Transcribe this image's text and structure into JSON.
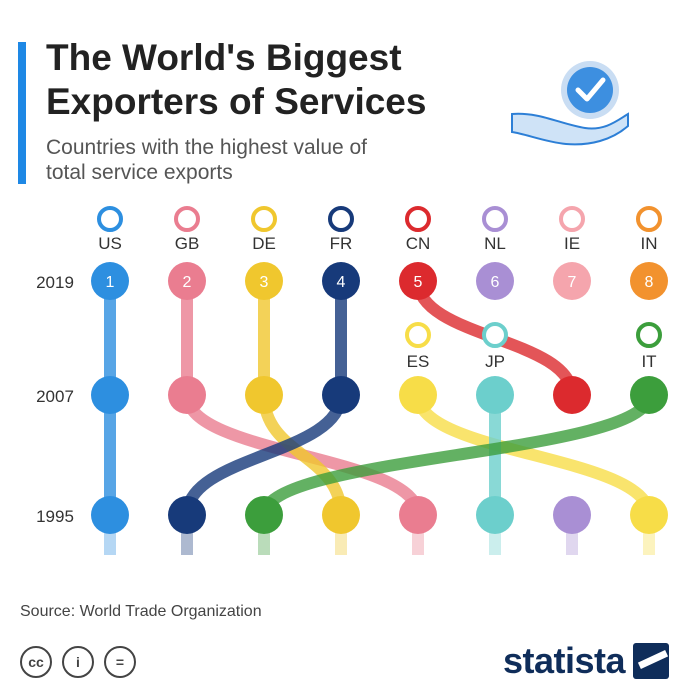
{
  "header": {
    "title": "The World's Biggest Exporters of Services",
    "subtitle": "Countries with the highest value of total service exports"
  },
  "footer": {
    "source": "Source: World Trade Organization",
    "brand": "statista",
    "license_icons": [
      "cc-icon",
      "attribution-icon",
      "no-derivatives-icon"
    ]
  },
  "chart_data": {
    "type": "bump",
    "years": [
      "2019",
      "2007",
      "1995"
    ],
    "ranks": [
      1,
      2,
      3,
      4,
      5,
      6,
      7,
      8
    ],
    "grid": false,
    "legend": "flag labels above nodes",
    "countries": [
      {
        "code": "US",
        "color": "#2d8fe0",
        "ranks": [
          1,
          1,
          1
        ]
      },
      {
        "code": "GB",
        "color": "#ea7d90",
        "ranks": [
          2,
          2,
          5
        ]
      },
      {
        "code": "DE",
        "color": "#f0c72e",
        "ranks": [
          3,
          3,
          4
        ]
      },
      {
        "code": "FR",
        "color": "#173a7a",
        "ranks": [
          4,
          4,
          2
        ]
      },
      {
        "code": "CN",
        "color": "#dc2a2e",
        "ranks": [
          5,
          7,
          null
        ]
      },
      {
        "code": "NL",
        "color": "#a98fd4",
        "ranks": [
          6,
          null,
          7
        ]
      },
      {
        "code": "IE",
        "color": "#f5a5ad",
        "ranks": [
          7,
          null,
          null
        ]
      },
      {
        "code": "IN",
        "color": "#f2922e",
        "ranks": [
          8,
          null,
          null
        ]
      },
      {
        "code": "ES",
        "color": "#f7dd48",
        "ranks": [
          null,
          5,
          8
        ]
      },
      {
        "code": "JP",
        "color": "#6ccfcc",
        "ranks": [
          null,
          6,
          6
        ]
      },
      {
        "code": "IT",
        "color": "#3c9e3c",
        "ranks": [
          null,
          8,
          3
        ]
      }
    ]
  }
}
